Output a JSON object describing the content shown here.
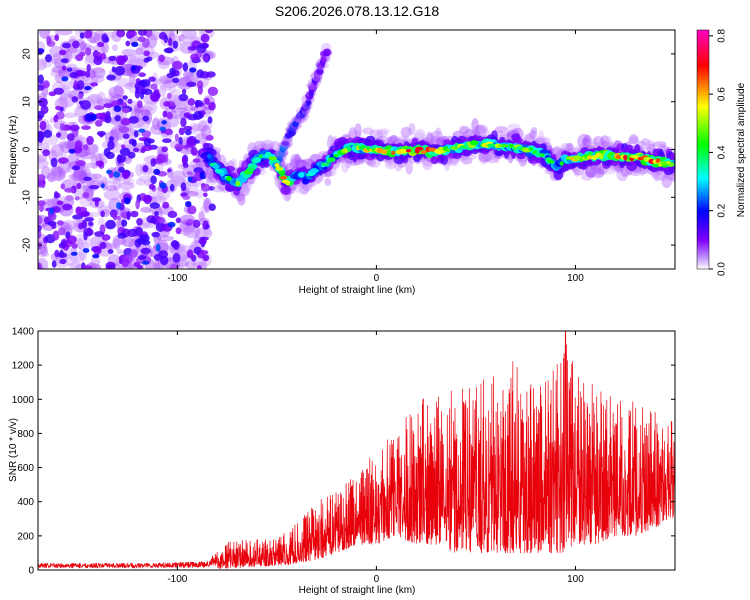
{
  "title": "S206.2026.078.13.12.G18",
  "chart_data": [
    {
      "type": "heatmap",
      "title": "S206.2026.078.13.12.G18",
      "xlabel": "Height of straight line (km)",
      "ylabel": "Frequency (Hz)",
      "xlim": [
        -170,
        150
      ],
      "ylim": [
        -25,
        25
      ],
      "xticks": [
        -100,
        0,
        100
      ],
      "yticks": [
        -20,
        -10,
        0,
        10,
        20
      ],
      "colorbar": {
        "label": "Normalized spectral amplitude",
        "range": [
          0,
          0.82
        ],
        "ticks": [
          0.0,
          0.2,
          0.4,
          0.6,
          0.8
        ],
        "colormap": [
          "#ffffff",
          "#8000ff",
          "#0000ff",
          "#00ffff",
          "#00ff00",
          "#ffff00",
          "#ff0000",
          "#ff00c0"
        ]
      },
      "ridge": {
        "x": [
          -85,
          -80,
          -75,
          -70,
          -65,
          -60,
          -55,
          -50,
          -45,
          -40,
          -35,
          -30,
          -25,
          -20,
          -15,
          -10,
          -5,
          0,
          10,
          20,
          30,
          40,
          50,
          60,
          70,
          80,
          85,
          90,
          95,
          100,
          110,
          120,
          130,
          140,
          148
        ],
        "freq": [
          -1,
          -4,
          -6,
          -7,
          -5,
          -2,
          -1,
          -3,
          -7,
          -5,
          -6,
          -4,
          -3,
          -1,
          0,
          0.5,
          0,
          0,
          -0.5,
          0,
          -0.5,
          0.5,
          1,
          1,
          0.5,
          -0.5,
          -1,
          -4,
          -2,
          -2,
          -1.5,
          -1.5,
          -1.5,
          -2.5,
          -3
        ],
        "amplitude": [
          0.3,
          0.35,
          0.4,
          0.45,
          0.5,
          0.4,
          0.35,
          0.55,
          0.65,
          0.4,
          0.35,
          0.35,
          0.4,
          0.45,
          0.5,
          0.5,
          0.55,
          0.6,
          0.6,
          0.75,
          0.55,
          0.5,
          0.55,
          0.5,
          0.5,
          0.45,
          0.4,
          0.4,
          0.45,
          0.55,
          0.6,
          0.7,
          0.7,
          0.65,
          0.55
        ]
      },
      "arc": {
        "x": [
          -50,
          -45,
          -40,
          -35,
          -32,
          -28,
          -25
        ],
        "freq": [
          -3,
          2,
          6,
          9,
          13,
          17,
          21
        ],
        "amplitude": [
          0.25,
          0.2,
          0.2,
          0.15,
          0.12,
          0.12,
          0.1
        ]
      }
    },
    {
      "type": "line",
      "xlabel": "Height of straight line (km)",
      "ylabel": "SNR (10 * v/v)",
      "xlim": [
        -170,
        150
      ],
      "ylim": [
        0,
        1400
      ],
      "xticks": [
        -100,
        0,
        100
      ],
      "yticks": [
        0,
        200,
        400,
        600,
        800,
        1000,
        1200,
        1400
      ],
      "series": [
        {
          "name": "SNR",
          "color": "#e8000b",
          "envelope_x": [
            -170,
            -120,
            -85,
            -75,
            -60,
            -45,
            -30,
            -20,
            -10,
            0,
            10,
            20,
            30,
            40,
            50,
            60,
            70,
            80,
            90,
            95,
            100,
            110,
            120,
            130,
            140,
            150
          ],
          "envelope_max": [
            40,
            40,
            50,
            170,
            180,
            220,
            400,
            480,
            600,
            700,
            850,
            1000,
            1050,
            1100,
            1100,
            1150,
            1260,
            1150,
            1200,
            1400,
            1150,
            1100,
            1000,
            1000,
            950,
            900
          ],
          "envelope_min": [
            5,
            5,
            5,
            10,
            20,
            30,
            60,
            100,
            150,
            150,
            200,
            150,
            150,
            100,
            100,
            100,
            100,
            100,
            100,
            100,
            150,
            150,
            200,
            200,
            250,
            300
          ]
        }
      ]
    }
  ]
}
